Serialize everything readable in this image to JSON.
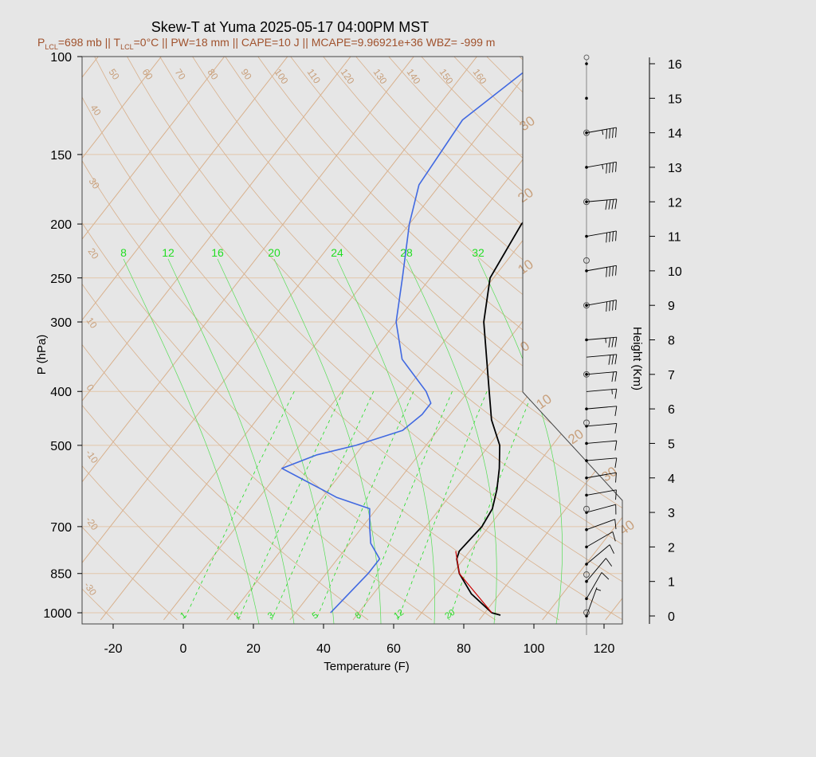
{
  "chart_data": {
    "type": "line",
    "title": "Skew-T at Yuma 2025-05-17 04:00PM MST",
    "subtitle": {
      "lcl_p": "=698 mb || T",
      "lcl_t": "=0°C || PW=18 mm || CAPE=10 J || MCAPE=9.96921e+36 WBZ= -999 m",
      "P": "P",
      "T": "T",
      "LCL": "LCL"
    },
    "xlabel": "Temperature (F)",
    "ylabel": "P (hPa)",
    "y2label": "Height (Km)",
    "x_ticks": [
      -20,
      0,
      20,
      40,
      60,
      80,
      100,
      120
    ],
    "p_ticks": [
      100,
      150,
      200,
      250,
      300,
      400,
      500,
      700,
      850,
      1000
    ],
    "height_ticks": [
      0,
      1,
      2,
      3,
      4,
      5,
      6,
      7,
      8,
      9,
      10,
      11,
      12,
      13,
      14,
      15,
      16
    ],
    "xlim": [
      -28,
      125
    ],
    "plim": [
      100,
      1030
    ],
    "dry_adiabat_labels": [
      -30,
      -20,
      -10,
      0,
      10,
      20,
      30,
      40,
      50,
      60,
      70,
      80,
      90,
      100,
      110,
      120,
      130,
      140,
      150,
      160
    ],
    "isotherm_labels": [
      30,
      20,
      10,
      0,
      10,
      20,
      30,
      40
    ],
    "moist_adiabat_labels": [
      8,
      12,
      16,
      20,
      24,
      28,
      32
    ],
    "mixing_ratio_labels": [
      1,
      2,
      3,
      5,
      8,
      12,
      20
    ],
    "series": [
      {
        "name": "Temperature",
        "color": "#000000",
        "points": [
          [
            1010,
            91
          ],
          [
            1000,
            88
          ],
          [
            925,
            78
          ],
          [
            850,
            70
          ],
          [
            800,
            66
          ],
          [
            775,
            65
          ],
          [
            700,
            66
          ],
          [
            650,
            65
          ],
          [
            600,
            62
          ],
          [
            550,
            58
          ],
          [
            500,
            53
          ],
          [
            450,
            45
          ],
          [
            400,
            38
          ],
          [
            300,
            21
          ],
          [
            250,
            13
          ],
          [
            200,
            10
          ],
          [
            175,
            11
          ],
          [
            150,
            13
          ],
          [
            120,
            20
          ],
          [
            100,
            29
          ]
        ]
      },
      {
        "name": "Dewpoint",
        "color": "#4169e1",
        "points": [
          [
            1000,
            42
          ],
          [
            850,
            44
          ],
          [
            800,
            44
          ],
          [
            750,
            38
          ],
          [
            700,
            34
          ],
          [
            650,
            30
          ],
          [
            620,
            18
          ],
          [
            600,
            12
          ],
          [
            550,
            -4
          ],
          [
            520,
            3
          ],
          [
            500,
            12
          ],
          [
            470,
            22
          ],
          [
            440,
            24
          ],
          [
            420,
            24
          ],
          [
            400,
            20
          ],
          [
            350,
            6
          ],
          [
            300,
            -4
          ],
          [
            250,
            -12
          ],
          [
            200,
            -22
          ],
          [
            170,
            -28
          ],
          [
            130,
            -30
          ],
          [
            100,
            -21
          ]
        ]
      },
      {
        "name": "Parcel",
        "color": "#cc0000",
        "points": [
          [
            1000,
            88
          ],
          [
            850,
            70
          ],
          [
            775,
            64
          ]
        ]
      }
    ],
    "wind_barbs": [
      {
        "h": 0,
        "dir": 200,
        "spd": 5
      },
      {
        "h": 0.5,
        "dir": 210,
        "spd": 10
      },
      {
        "h": 1,
        "dir": 220,
        "spd": 10
      },
      {
        "h": 1.5,
        "dir": 230,
        "spd": 10
      },
      {
        "h": 2,
        "dir": 240,
        "spd": 10
      },
      {
        "h": 2.5,
        "dir": 250,
        "spd": 10
      },
      {
        "h": 3,
        "dir": 255,
        "spd": 10
      },
      {
        "h": 3.5,
        "dir": 260,
        "spd": 10
      },
      {
        "h": 4,
        "dir": 260,
        "spd": 10
      },
      {
        "h": 4.5,
        "dir": 265,
        "spd": 10
      },
      {
        "h": 5,
        "dir": 265,
        "spd": 10
      },
      {
        "h": 5.5,
        "dir": 265,
        "spd": 10
      },
      {
        "h": 6,
        "dir": 265,
        "spd": 10
      },
      {
        "h": 6.5,
        "dir": 265,
        "spd": 15
      },
      {
        "h": 7,
        "dir": 265,
        "spd": 20
      },
      {
        "h": 7.5,
        "dir": 265,
        "spd": 30
      },
      {
        "h": 8,
        "dir": 265,
        "spd": 35
      },
      {
        "h": 9,
        "dir": 260,
        "spd": 40
      },
      {
        "h": 10,
        "dir": 260,
        "spd": 40
      },
      {
        "h": 11,
        "dir": 260,
        "spd": 40
      },
      {
        "h": 12,
        "dir": 265,
        "spd": 40
      },
      {
        "h": 13,
        "dir": 260,
        "spd": 45
      },
      {
        "h": 14,
        "dir": 260,
        "spd": 45
      }
    ],
    "hodo_dots": [
      0,
      0.5,
      1,
      1.5,
      2,
      2.5,
      3,
      3.5,
      4,
      4.5,
      5,
      5.5,
      6,
      7,
      8,
      9,
      10,
      11,
      12,
      13,
      14,
      15,
      16
    ],
    "hodo_circles": [
      0.1,
      1.2,
      3.1,
      5.6,
      7,
      9,
      10.3,
      12,
      14
    ]
  }
}
